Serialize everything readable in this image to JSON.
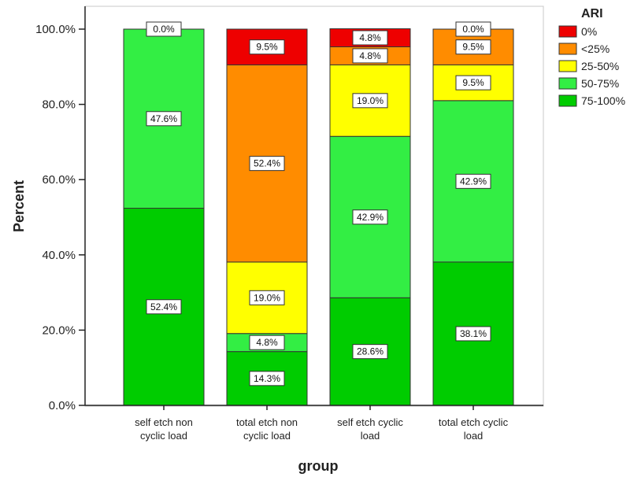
{
  "chart_data": {
    "type": "bar",
    "stacked": true,
    "title": "",
    "xlabel": "group",
    "ylabel": "Percent",
    "ylim": [
      0,
      100
    ],
    "y_ticks": [
      "0.0%",
      "20.0%",
      "40.0%",
      "60.0%",
      "80.0%",
      "100.0%"
    ],
    "grid": false,
    "legend_position": "top-right",
    "legend_title": "ARI",
    "categories": [
      [
        "self etch non",
        "cyclic load"
      ],
      [
        "total etch non",
        "cyclic load"
      ],
      [
        "self etch cyclic",
        "load"
      ],
      [
        "total etch cyclic",
        "load"
      ]
    ],
    "series": [
      {
        "name": "75-100%",
        "color": "#00cc00",
        "values": [
          52.4,
          14.3,
          28.6,
          38.1
        ],
        "labels": [
          "52.4%",
          "14.3%",
          "28.6%",
          "38.1%"
        ]
      },
      {
        "name": "50-75%",
        "color": "#33ee44",
        "values": [
          47.6,
          4.8,
          42.9,
          42.9
        ],
        "labels": [
          "47.6%",
          "4.8%",
          "42.9%",
          "42.9%"
        ]
      },
      {
        "name": "25-50%",
        "color": "#ffff00",
        "values": [
          0,
          19.0,
          19.0,
          9.5
        ],
        "labels": [
          null,
          "19.0%",
          "19.0%",
          "9.5%"
        ]
      },
      {
        "name": "<25%",
        "color": "#ff8c00",
        "values": [
          0,
          52.4,
          4.8,
          9.5
        ],
        "labels": [
          null,
          "52.4%",
          "4.8%",
          "9.5%"
        ]
      },
      {
        "name": "0%",
        "color": "#ee0000",
        "values": [
          0.0,
          9.5,
          4.8,
          0.0
        ],
        "labels": [
          "0.0%",
          "9.5%",
          "4.8%",
          "0.0%"
        ]
      }
    ],
    "legend_order": [
      "0%",
      "<25%",
      "25-50%",
      "50-75%",
      "75-100%"
    ]
  }
}
